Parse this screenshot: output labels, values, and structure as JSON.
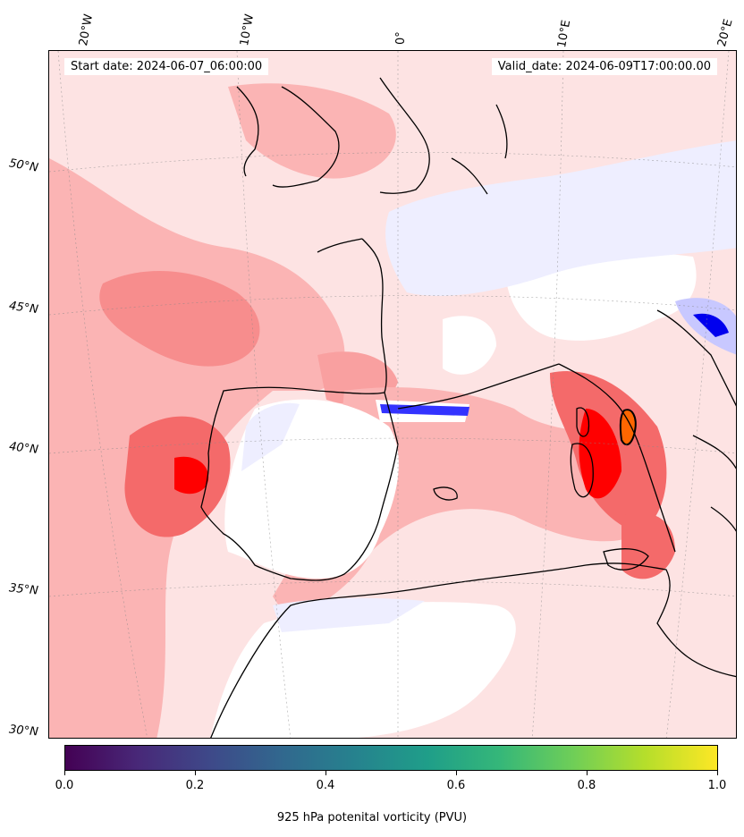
{
  "map": {
    "start_date": "Start date: 2024-06-07_06:00:00",
    "valid_date": "Valid_date: 2024-06-09T17:00:00.00",
    "lon_labels": [
      "20°W",
      "10°W",
      "0°",
      "10°E",
      "20°E"
    ],
    "lat_labels": [
      "50°N",
      "45°N",
      "40°N",
      "35°N",
      "30°N"
    ],
    "colors": {
      "background_light_red": "#fde3e3",
      "medium_red": "#fbb4b4",
      "strong_red": "#f46a6a",
      "intense_red": "#ff0000",
      "white_patch": "#ffffff",
      "light_blue": "#eeeeff",
      "blue": "#0000ee",
      "coastline": "#000000"
    }
  },
  "colorbar": {
    "label": "925 hPa potenital vorticity (PVU)",
    "ticks": [
      "0.0",
      "0.2",
      "0.4",
      "0.6",
      "0.8",
      "1.0"
    ],
    "colormap": "viridis"
  }
}
